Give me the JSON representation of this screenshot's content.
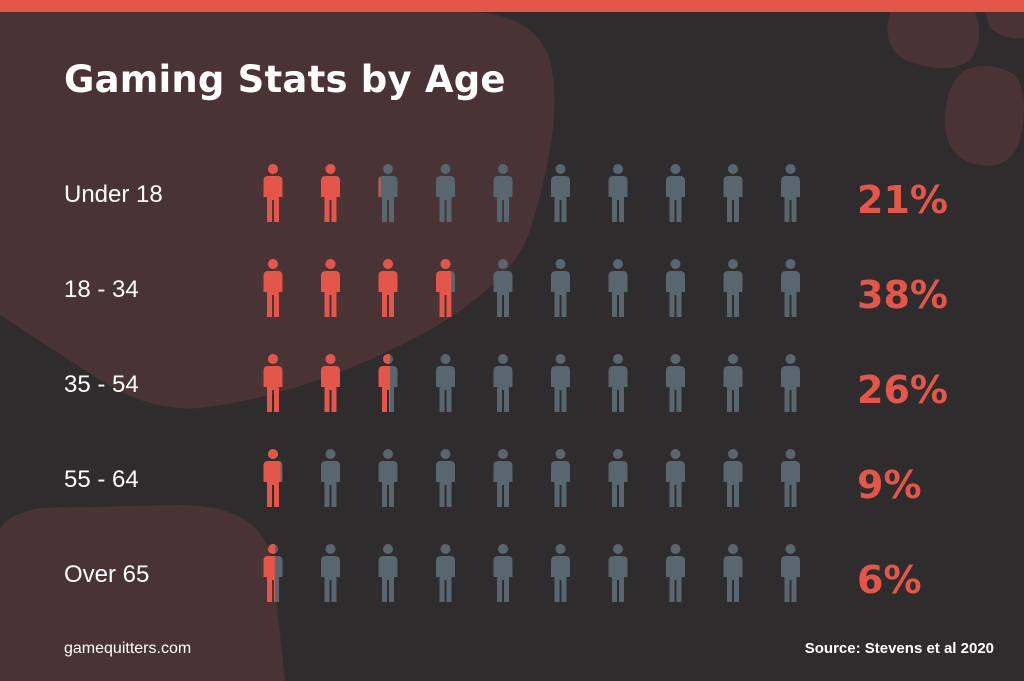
{
  "title": "Gaming Stats by Age",
  "footer": {
    "site": "gamequitters.com",
    "source": "Source: Stevens et al 2020"
  },
  "colors": {
    "accent": "#e4564a",
    "inactive": "#586670",
    "background": "#2f2c2d",
    "blob": "#4a3335"
  },
  "chart_data": {
    "type": "pictograph",
    "title": "Gaming Stats by Age",
    "icons_per_row": 10,
    "unit": "percent",
    "categories": [
      "Under 18",
      "18 - 34",
      "35 - 54",
      "55 - 64",
      "Over 65"
    ],
    "values": [
      21,
      38,
      26,
      9,
      6
    ],
    "value_labels": [
      "21%",
      "38%",
      "26%",
      "9%",
      "6%"
    ],
    "source": "Source: Stevens et al 2020"
  }
}
